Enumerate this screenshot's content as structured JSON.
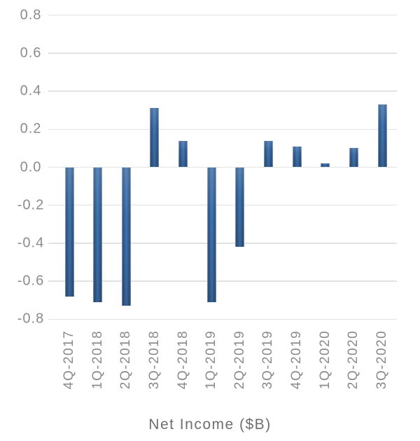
{
  "chart_data": {
    "type": "bar",
    "title": "Net Income ($B)",
    "xlabel": "",
    "ylabel": "",
    "categories": [
      "4Q-2017",
      "1Q-2018",
      "2Q-2018",
      "3Q-2018",
      "4Q-2018",
      "1Q-2019",
      "2Q-2019",
      "3Q-2019",
      "4Q-2019",
      "1Q-2020",
      "2Q-2020",
      "3Q-2020"
    ],
    "values": [
      -0.68,
      -0.71,
      -0.73,
      0.31,
      0.14,
      -0.71,
      -0.42,
      0.14,
      0.11,
      0.02,
      0.1,
      0.33
    ],
    "y_ticks": [
      0.8,
      0.6,
      0.4,
      0.2,
      0.0,
      -0.2,
      -0.4,
      -0.6,
      -0.8
    ],
    "ylim": [
      -0.8,
      0.8
    ],
    "grid": true,
    "legend": "none",
    "colors": {
      "bar_center": "#3e70a9",
      "bar_edge": "#2b5181",
      "bar_outline": "#9db7d3",
      "gridline": "#e2e2e2",
      "tick_label": "#8c8c8c",
      "title": "#6e6e6e",
      "background": "#ffffff"
    }
  }
}
